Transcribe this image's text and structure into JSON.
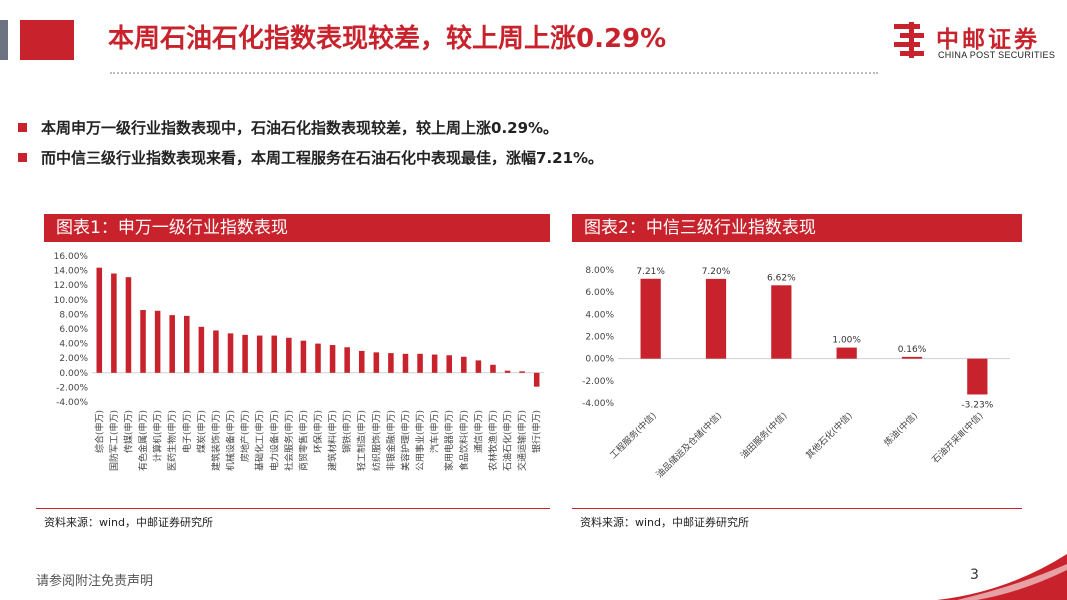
{
  "title": "本周石油石化指数表现较差，较上周上涨0.29%",
  "logo": {
    "cn": "中邮证券",
    "en": "CHINA POST SECURITIES"
  },
  "bullets": [
    "本周申万一级行业指数表现中，石油石化指数表现较差，较上周上涨0.29%。",
    "而中信三级行业指数表现来看，本周工程服务在石油石化中表现最佳，涨幅7.21%。"
  ],
  "figure1": {
    "title": "图表1：申万一级行业指数表现",
    "source": "资料来源：wind，中邮证券研究所"
  },
  "figure2": {
    "title": "图表2：中信三级行业指数表现",
    "source": "资料来源：wind，中邮证券研究所"
  },
  "footer": {
    "disclaimer": "请参阅附注免责声明",
    "page": "3"
  },
  "colors": {
    "accent": "#c8232c",
    "gray_block": "#6b7480"
  },
  "chart_data": [
    {
      "type": "bar",
      "title": "图表1：申万一级行业指数表现",
      "ylim": [
        -4,
        16
      ],
      "ytick_step": 2,
      "ytick_format": "percent_2dp",
      "grid": false,
      "categories": [
        "综合(申万)",
        "国防军工(申万)",
        "传媒(申万)",
        "有色金属(申万)",
        "计算机(申万)",
        "医药生物(申万)",
        "电子(申万)",
        "煤炭(申万)",
        "建筑装饰(申万)",
        "机械设备(申万)",
        "房地产(申万)",
        "基础化工(申万)",
        "电力设备(申万)",
        "社会服务(申万)",
        "商贸零售(申万)",
        "环保(申万)",
        "建筑材料(申万)",
        "钢铁(申万)",
        "轻工制造(申万)",
        "纺织服饰(申万)",
        "非银金融(申万)",
        "美容护理(申万)",
        "公用事业(申万)",
        "汽车(申万)",
        "家用电器(申万)",
        "食品饮料(申万)",
        "通信(申万)",
        "农林牧渔(申万)",
        "石油石化(申万)",
        "交通运输(申万)",
        "银行(申万)"
      ],
      "values": [
        14.4,
        13.6,
        13.1,
        8.6,
        8.5,
        7.9,
        7.8,
        6.3,
        5.8,
        5.4,
        5.2,
        5.1,
        5.1,
        4.8,
        4.4,
        4.0,
        3.8,
        3.5,
        3.0,
        2.8,
        2.7,
        2.6,
        2.6,
        2.5,
        2.4,
        2.2,
        1.7,
        1.1,
        0.29,
        0.2,
        -1.9
      ]
    },
    {
      "type": "bar",
      "title": "图表2：中信三级行业指数表现",
      "ylim": [
        -4,
        8
      ],
      "ytick_step": 2,
      "ytick_format": "percent_2dp",
      "grid": false,
      "categories": [
        "工程服务(中信)",
        "油品储运及仓储(中信)",
        "油田服务(中信)",
        "其他石化(中信)",
        "炼油(中信)",
        "石油开采Ⅲ(中信)"
      ],
      "values": [
        7.21,
        7.2,
        6.62,
        1.0,
        0.16,
        -3.23
      ],
      "data_labels": [
        "7.21%",
        "7.20%",
        "6.62%",
        "1.00%",
        "0.16%",
        "-3.23%"
      ]
    }
  ]
}
